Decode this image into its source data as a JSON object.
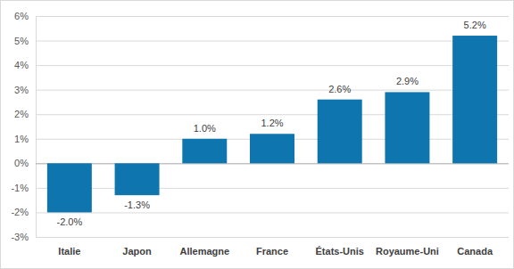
{
  "chart_data": {
    "type": "bar",
    "categories": [
      "Italie",
      "Japon",
      "Allemagne",
      "France",
      "États-Unis",
      "Royaume-Uni",
      "Canada"
    ],
    "values": [
      -2.0,
      -1.3,
      1.0,
      1.2,
      2.6,
      2.9,
      5.2
    ],
    "value_labels": [
      "-2.0%",
      "-1.3%",
      "1.0%",
      "1.2%",
      "2.6%",
      "2.9%",
      "5.2%"
    ],
    "color": "#0f75ae",
    "ylim": [
      -3,
      6
    ],
    "yticks": [
      {
        "value": -3,
        "label": "-3%"
      },
      {
        "value": -2,
        "label": "-2%"
      },
      {
        "value": -1,
        "label": "-1%"
      },
      {
        "value": 0,
        "label": "0%"
      },
      {
        "value": 1,
        "label": "1%"
      },
      {
        "value": 2,
        "label": "2%"
      },
      {
        "value": 3,
        "label": "3%"
      },
      {
        "value": 4,
        "label": "4%"
      },
      {
        "value": 5,
        "label": "5%"
      },
      {
        "value": 6,
        "label": "6%"
      }
    ],
    "grid": true,
    "data_labels": true
  }
}
